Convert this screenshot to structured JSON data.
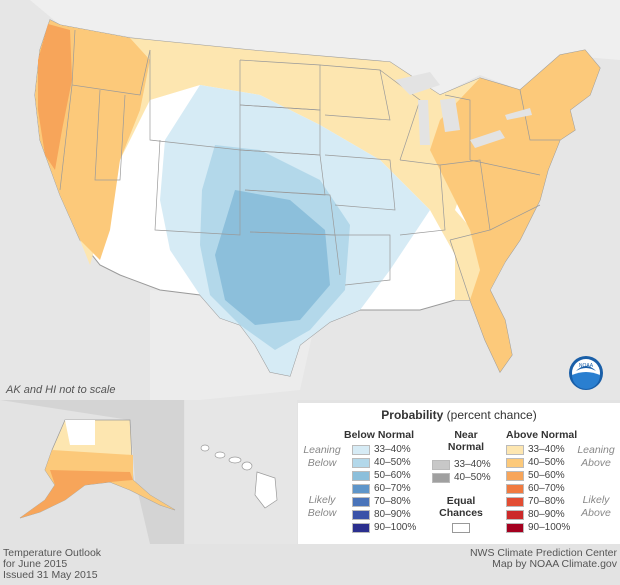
{
  "note": "AK and HI not to scale",
  "legend": {
    "title_bold": "Probability",
    "title_rest": " (percent chance)",
    "below_header": "Below Normal",
    "near_header_1": "Near",
    "near_header_2": "Normal",
    "above_header": "Above Normal",
    "leaning_below_1": "Leaning",
    "leaning_below_2": "Below",
    "likely_below_1": "Likely",
    "likely_below_2": "Below",
    "leaning_above_1": "Leaning",
    "leaning_above_2": "Above",
    "likely_above_1": "Likely",
    "likely_above_2": "Above",
    "equal_1": "Equal",
    "equal_2": "Chances",
    "below": [
      {
        "label": "33–40%",
        "color": "#d6ebf5"
      },
      {
        "label": "40–50%",
        "color": "#b3d8ea"
      },
      {
        "label": "50–60%",
        "color": "#8cbfdb"
      },
      {
        "label": "60–70%",
        "color": "#5e95c9"
      },
      {
        "label": "70–80%",
        "color": "#4a74ba"
      },
      {
        "label": "80–90%",
        "color": "#3a52a8"
      },
      {
        "label": "90–100%",
        "color": "#2b2f8e"
      }
    ],
    "near": [
      {
        "label": "33–40%",
        "color": "#c8c8c8"
      },
      {
        "label": "40–50%",
        "color": "#a0a0a0"
      }
    ],
    "above": [
      {
        "label": "33–40%",
        "color": "#fde6b0"
      },
      {
        "label": "40–50%",
        "color": "#fcc97a"
      },
      {
        "label": "50–60%",
        "color": "#f7a55a"
      },
      {
        "label": "60–70%",
        "color": "#f07a40"
      },
      {
        "label": "70–80%",
        "color": "#e24d33"
      },
      {
        "label": "80–90%",
        "color": "#cc2a2a"
      },
      {
        "label": "90–100%",
        "color": "#a4001f"
      }
    ]
  },
  "footer": {
    "left_1": "Temperature Outlook",
    "left_2": "for June 2015",
    "left_3": "Issued 31 May 2015",
    "right_1": "NWS Climate Prediction Center",
    "right_2": "Map by NOAA Climate.gov"
  },
  "logo_text": "NOAA"
}
